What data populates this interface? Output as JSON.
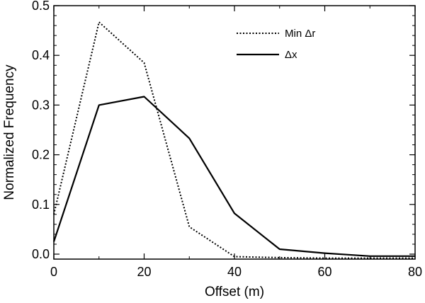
{
  "chart_data": {
    "type": "line",
    "xlabel": "Offset (m)",
    "ylabel": "Normalized Frequency",
    "xlim": [
      0,
      80
    ],
    "ylim": [
      -0.01,
      0.5
    ],
    "xticks": [
      0,
      20,
      40,
      60,
      80
    ],
    "xtick_labels": [
      "0",
      "20",
      "40",
      "60",
      "80"
    ],
    "yticks": [
      0.0,
      0.1,
      0.2,
      0.3,
      0.4,
      0.5
    ],
    "ytick_labels": [
      "0.0",
      "0.1",
      "0.2",
      "0.3",
      "0.4",
      "0.5"
    ],
    "grid": false,
    "legend_position": "top-right",
    "series": [
      {
        "name": "Min Δr",
        "style": "dotted",
        "color": "#000000",
        "x": [
          0,
          10,
          20,
          30,
          40,
          50,
          60,
          70,
          80
        ],
        "y": [
          0.08,
          0.467,
          0.385,
          0.055,
          -0.005,
          -0.007,
          -0.008,
          -0.008,
          -0.008
        ]
      },
      {
        "name": "Δx",
        "style": "solid",
        "color": "#000000",
        "x": [
          0,
          10,
          20,
          30,
          40,
          50,
          60,
          70,
          80
        ],
        "y": [
          0.025,
          0.3,
          0.317,
          0.233,
          0.082,
          0.01,
          0.002,
          -0.004,
          -0.004
        ]
      }
    ]
  }
}
